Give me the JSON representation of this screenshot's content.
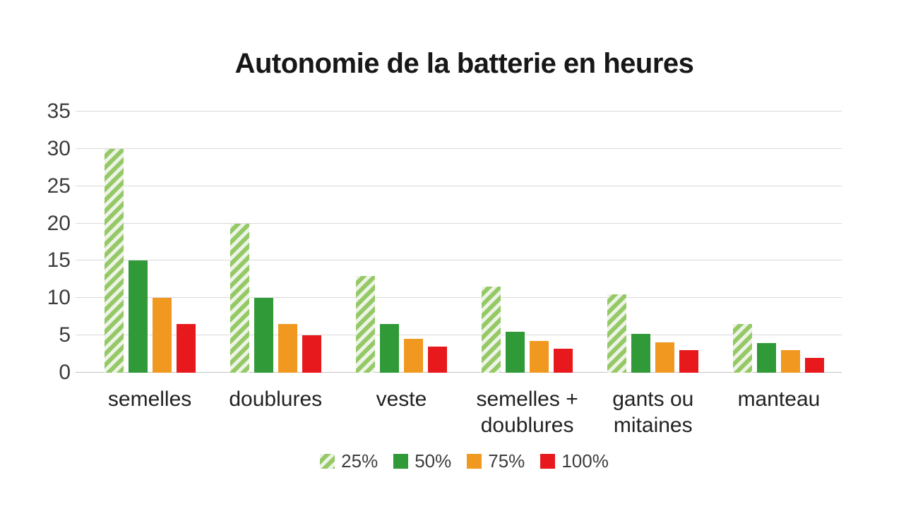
{
  "title": "Autonomie de la batterie en heures",
  "colors": {
    "title_text": "#171717",
    "axis_text": "#3d3d3d",
    "category_text": "#222222",
    "gridline": "#d9d9d9",
    "baseline": "#c3c3c3",
    "stripe_green": "#94c965",
    "stripe_light": "#eef3e8",
    "solid_green": "#2f9a37",
    "orange": "#f0981f",
    "red": "#e8191d"
  },
  "chart_data": {
    "type": "bar",
    "title": "Autonomie de la batterie en heures",
    "categories": [
      "semelles",
      "doublures",
      "veste",
      "semelles + doublures",
      "gants ou mitaines",
      "manteau"
    ],
    "series": [
      {
        "name": "25%",
        "pattern": "diagonal-stripes",
        "color": "#94c965",
        "bg": "#eef3e8",
        "values": [
          30,
          20,
          13,
          11.5,
          10.5,
          6.5
        ]
      },
      {
        "name": "50%",
        "pattern": "solid",
        "color": "#2f9a37",
        "values": [
          15,
          10,
          6.5,
          5.5,
          5.2,
          4
        ]
      },
      {
        "name": "75%",
        "pattern": "solid",
        "color": "#f0981f",
        "values": [
          10,
          6.5,
          4.5,
          4.3,
          4.1,
          3
        ]
      },
      {
        "name": "100%",
        "pattern": "solid",
        "color": "#e8191d",
        "values": [
          6.5,
          5,
          3.5,
          3.2,
          3,
          2
        ]
      }
    ],
    "ylim": [
      0,
      35
    ],
    "yticks": [
      0,
      5,
      10,
      15,
      20,
      25,
      30,
      35
    ],
    "xlabel": "",
    "ylabel": "",
    "grid": "horizontal",
    "legend_position": "bottom-center"
  }
}
